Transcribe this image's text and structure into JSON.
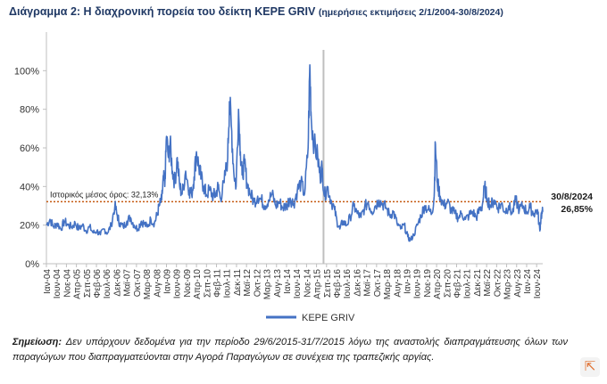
{
  "title": {
    "main": "Διάγραμμα 2: Η διαχρονική πορεία του δείκτη ΚΕΡΕ GRIV",
    "sub": "(ημερήσιες εκτιμήσεις 2/1/2004-30/8/2024)"
  },
  "chart_data": {
    "type": "line",
    "title": "Διάγραμμα 2: Η διαχρονική πορεία του δείκτη ΚΕΡΕ GRIV (ημερήσιες εκτιμήσεις 2/1/2004-30/8/2024)",
    "xlabel": "",
    "ylabel": "",
    "ylim": [
      0,
      120
    ],
    "yticks": [
      "0%",
      "20%",
      "40%",
      "60%",
      "80%",
      "100%"
    ],
    "ytick_values": [
      0,
      20,
      40,
      60,
      80,
      100
    ],
    "xlim": [
      2004.0,
      2024.67
    ],
    "categories": [
      "Ιαν-04",
      "Ιουν-04",
      "Νοε-04",
      "Απρ-05",
      "Σεπ-05",
      "Φεβ-06",
      "Ιουλ-06",
      "Δεκ-06",
      "Μαϊ-07",
      "Οκτ-07",
      "Μαρ-08",
      "Αυγ-08",
      "Ιαν-09",
      "Ιουν-09",
      "Νοε-09",
      "Απρ-10",
      "Σεπ-10",
      "Φεβ-11",
      "Ιουλ-11",
      "Δεκ-11",
      "Μαϊ-12",
      "Οκτ-12",
      "Μαρ-13",
      "Αυγ-13",
      "Ιαν-14",
      "Ιουν-14",
      "Νοε-14",
      "Απρ-15",
      "Σεπ-15",
      "Φεβ-16",
      "Ιουλ-16",
      "Δεκ-16",
      "Μαϊ-17",
      "Οκτ-17",
      "Μαρ-18",
      "Αυγ-18",
      "Ιαν-19",
      "Ιουν-19",
      "Νοε-19",
      "Απρ-20",
      "Σεπ-20",
      "Φεβ-21",
      "Ιουλ-21",
      "Δεκ-21",
      "Μαϊ-22",
      "Οκτ-22",
      "Μαρ-23",
      "Αυγ-23",
      "Ιαν-24",
      "Ιουν-24"
    ],
    "series": [
      {
        "name": "ΚΕΡΕ GRIV",
        "color": "#4472c4",
        "points": [
          [
            2004.0,
            20
          ],
          [
            2004.15,
            23
          ],
          [
            2004.3,
            19
          ],
          [
            2004.45,
            21
          ],
          [
            2004.6,
            18
          ],
          [
            2004.75,
            22
          ],
          [
            2004.9,
            20
          ],
          [
            2005.05,
            19
          ],
          [
            2005.2,
            21
          ],
          [
            2005.35,
            18
          ],
          [
            2005.5,
            20
          ],
          [
            2005.65,
            17
          ],
          [
            2005.8,
            19
          ],
          [
            2005.95,
            16
          ],
          [
            2006.1,
            17
          ],
          [
            2006.25,
            15
          ],
          [
            2006.4,
            18
          ],
          [
            2006.55,
            16
          ],
          [
            2006.7,
            20
          ],
          [
            2006.85,
            30
          ],
          [
            2006.95,
            25
          ],
          [
            2007.05,
            21
          ],
          [
            2007.2,
            19
          ],
          [
            2007.35,
            22
          ],
          [
            2007.5,
            24
          ],
          [
            2007.65,
            20
          ],
          [
            2007.8,
            18
          ],
          [
            2007.95,
            22
          ],
          [
            2008.05,
            21
          ],
          [
            2008.2,
            19
          ],
          [
            2008.35,
            23
          ],
          [
            2008.5,
            21
          ],
          [
            2008.6,
            25
          ],
          [
            2008.7,
            30
          ],
          [
            2008.8,
            33
          ],
          [
            2008.88,
            45
          ],
          [
            2008.93,
            40
          ],
          [
            2009.0,
            66
          ],
          [
            2009.08,
            55
          ],
          [
            2009.15,
            62
          ],
          [
            2009.25,
            48
          ],
          [
            2009.35,
            42
          ],
          [
            2009.45,
            55
          ],
          [
            2009.55,
            40
          ],
          [
            2009.65,
            36
          ],
          [
            2009.8,
            48
          ],
          [
            2009.95,
            38
          ],
          [
            2010.05,
            36
          ],
          [
            2010.15,
            45
          ],
          [
            2010.25,
            58
          ],
          [
            2010.35,
            50
          ],
          [
            2010.45,
            44
          ],
          [
            2010.55,
            40
          ],
          [
            2010.65,
            36
          ],
          [
            2010.8,
            38
          ],
          [
            2010.95,
            35
          ],
          [
            2011.05,
            36
          ],
          [
            2011.15,
            40
          ],
          [
            2011.25,
            34
          ],
          [
            2011.4,
            42
          ],
          [
            2011.55,
            55
          ],
          [
            2011.62,
            84
          ],
          [
            2011.7,
            72
          ],
          [
            2011.8,
            48
          ],
          [
            2011.9,
            40
          ],
          [
            2012.0,
            80
          ],
          [
            2012.08,
            58
          ],
          [
            2012.15,
            46
          ],
          [
            2012.25,
            52
          ],
          [
            2012.35,
            42
          ],
          [
            2012.5,
            36
          ],
          [
            2012.65,
            32
          ],
          [
            2012.8,
            35
          ],
          [
            2012.95,
            33
          ],
          [
            2013.1,
            30
          ],
          [
            2013.25,
            33
          ],
          [
            2013.4,
            36
          ],
          [
            2013.55,
            30
          ],
          [
            2013.7,
            32
          ],
          [
            2013.85,
            29
          ],
          [
            2014.0,
            30
          ],
          [
            2014.15,
            34
          ],
          [
            2014.3,
            31
          ],
          [
            2014.45,
            38
          ],
          [
            2014.6,
            42
          ],
          [
            2014.75,
            36
          ],
          [
            2014.9,
            60
          ],
          [
            2014.97,
            103
          ],
          [
            2015.03,
            75
          ],
          [
            2015.15,
            62
          ],
          [
            2015.3,
            55
          ],
          [
            2015.4,
            45
          ],
          [
            2015.48,
            50
          ],
          [
            2015.58,
            35
          ],
          [
            2015.7,
            40
          ],
          [
            2015.85,
            33
          ],
          [
            2016.0,
            28
          ],
          [
            2016.1,
            22
          ],
          [
            2016.22,
            18
          ],
          [
            2016.35,
            22
          ],
          [
            2016.5,
            20
          ],
          [
            2016.65,
            24
          ],
          [
            2016.8,
            30
          ],
          [
            2016.95,
            26
          ],
          [
            2017.1,
            24
          ],
          [
            2017.25,
            29
          ],
          [
            2017.4,
            32
          ],
          [
            2017.55,
            27
          ],
          [
            2017.7,
            30
          ],
          [
            2017.85,
            33
          ],
          [
            2018.0,
            31
          ],
          [
            2018.15,
            29
          ],
          [
            2018.3,
            25
          ],
          [
            2018.45,
            27
          ],
          [
            2018.6,
            21
          ],
          [
            2018.75,
            18
          ],
          [
            2018.9,
            20
          ],
          [
            2019.05,
            14
          ],
          [
            2019.15,
            12
          ],
          [
            2019.3,
            15
          ],
          [
            2019.45,
            20
          ],
          [
            2019.6,
            25
          ],
          [
            2019.75,
            30
          ],
          [
            2019.9,
            28
          ],
          [
            2020.05,
            26
          ],
          [
            2020.15,
            35
          ],
          [
            2020.2,
            62
          ],
          [
            2020.28,
            42
          ],
          [
            2020.4,
            35
          ],
          [
            2020.55,
            30
          ],
          [
            2020.7,
            32
          ],
          [
            2020.85,
            28
          ],
          [
            2021.0,
            26
          ],
          [
            2021.15,
            24
          ],
          [
            2021.3,
            26
          ],
          [
            2021.45,
            23
          ],
          [
            2021.6,
            25
          ],
          [
            2021.75,
            27
          ],
          [
            2021.9,
            24
          ],
          [
            2022.05,
            28
          ],
          [
            2022.15,
            30
          ],
          [
            2022.25,
            40
          ],
          [
            2022.35,
            34
          ],
          [
            2022.5,
            30
          ],
          [
            2022.65,
            33
          ],
          [
            2022.8,
            29
          ],
          [
            2022.95,
            31
          ],
          [
            2023.1,
            27
          ],
          [
            2023.25,
            30
          ],
          [
            2023.4,
            26
          ],
          [
            2023.55,
            33
          ],
          [
            2023.7,
            28
          ],
          [
            2023.85,
            30
          ],
          [
            2024.0,
            27
          ],
          [
            2024.15,
            29
          ],
          [
            2024.3,
            26
          ],
          [
            2024.45,
            28
          ],
          [
            2024.55,
            17
          ],
          [
            2024.6,
            25
          ],
          [
            2024.67,
            26.85
          ]
        ]
      }
    ],
    "reference_line": {
      "label": "Ιστορικός μέσος όρος: 32,13%",
      "value": 32.13,
      "color": "#c55a11"
    },
    "gap_marker": {
      "x": 2015.54,
      "color": "#bfbfbf"
    },
    "end_annotation": {
      "date": "30/8/2024",
      "value": "26,85%"
    },
    "legend": {
      "position": "bottom-center",
      "entries": [
        "ΚΕΡΕ GRIV"
      ]
    },
    "grid": false
  },
  "note": {
    "label": "Σημείωση:",
    "text": "Δεν υπάρχουν δεδομένα για την περίοδο 29/6/2015-31/7/2015 λόγω της αναστολής διαπραγμάτευσης όλων των παραγώγων που διαπραγματεύονται στην Αγορά Παραγώγων σε συνέχεια της τραπεζικής αργίας."
  }
}
